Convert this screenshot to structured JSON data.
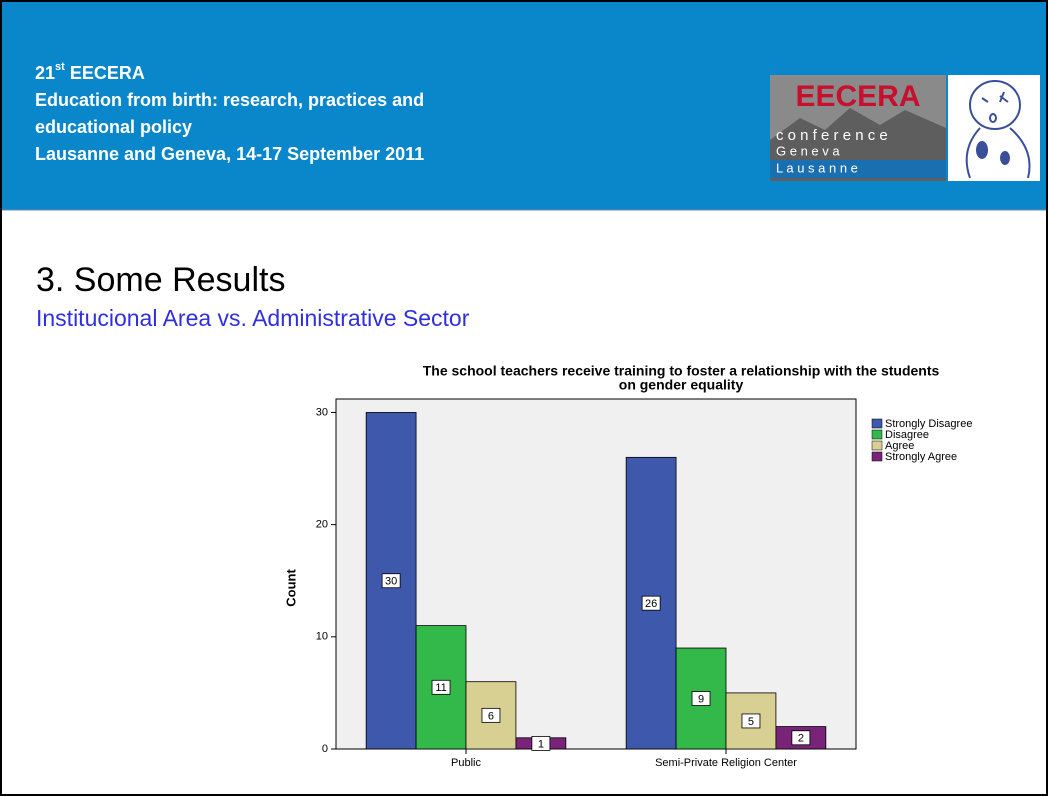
{
  "header": {
    "edition_number": "21",
    "edition_suffix": "st",
    "edition_name": " EECERA",
    "lines": [
      "Education from birth: research, practices and",
      "educational policy",
      "Lausanne and Geneva, 14-17 September 2011"
    ],
    "logo": {
      "name": "EECERA",
      "line1": "c o n f e r e n c e",
      "line2": "G  e  n  e  v  a",
      "line3": "L  a  u  s  a  n  n  e"
    }
  },
  "slide": {
    "title": "3. Some Results",
    "subtitle": "Institucional Area vs. Administrative Sector"
  },
  "chart_data": {
    "type": "bar",
    "title": [
      "The school teachers receive training to foster a relationship with the students",
      "on gender equality"
    ],
    "y_label": "Count",
    "categories": [
      "Public",
      "Semi-Private Religion Center"
    ],
    "series": [
      {
        "name": "Strongly Disagree",
        "color": "#3e58ac",
        "values": [
          30,
          26
        ]
      },
      {
        "name": "Disagree",
        "color": "#33b94a",
        "values": [
          11,
          9
        ]
      },
      {
        "name": "Agree",
        "color": "#d8cf93",
        "values": [
          6,
          5
        ]
      },
      {
        "name": "Strongly Agree",
        "color": "#7a2479",
        "values": [
          1,
          2
        ]
      }
    ],
    "ylim": [
      0,
      31.2
    ],
    "yticks": [
      0,
      10,
      20,
      30
    ],
    "legend": "right"
  }
}
